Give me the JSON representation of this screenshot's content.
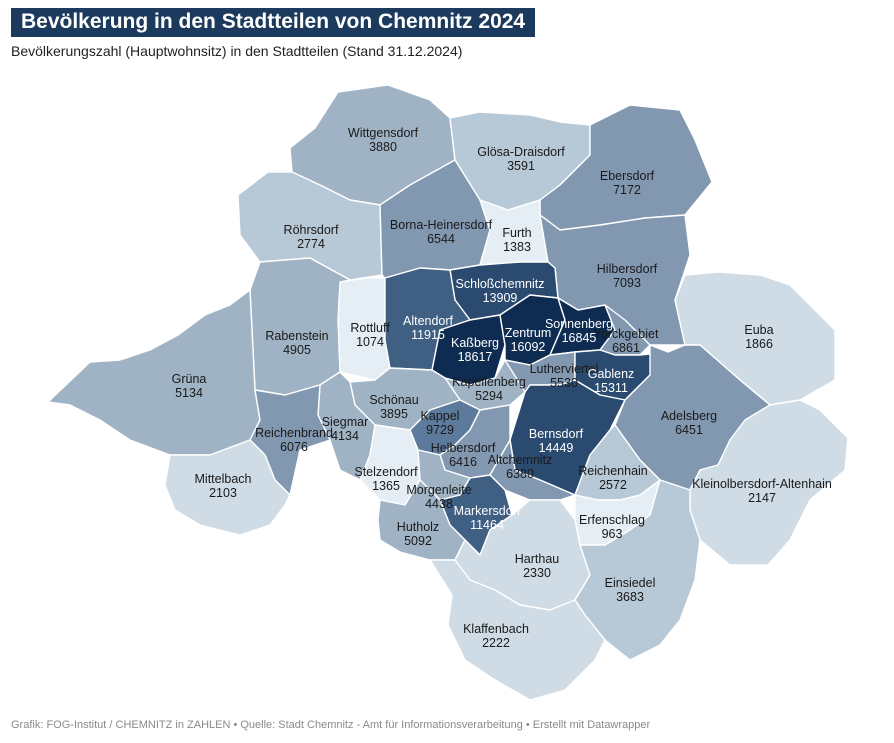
{
  "title": "Bevölkerung in den Stadtteilen von Chemnitz 2024",
  "subtitle": "Bevölkerungszahl (Hauptwohnsitz) in den Stadtteilen (Stand 31.12.2024)",
  "footer": "Grafik: FOG-Institut / CHEMNITZ in ZAHLEN • Quelle: Stadt Chemnitz - Amt für Informationsverarbeitung • Erstellt mit Datawrapper",
  "colors": {
    "scale": [
      "#e4eef4",
      "#cfdce6",
      "#b7c8d6",
      "#9fb3c5",
      "#8298b1",
      "#5c7a9b",
      "#3f5f83",
      "#2a4a70",
      "#0e2c52"
    ],
    "title_background": "#1c3a5e",
    "border": "#ffffff"
  },
  "districts": [
    {
      "name": "Wittgensdorf",
      "value": 3880
    },
    {
      "name": "Glösa-Draisdorf",
      "value": 3591
    },
    {
      "name": "Ebersdorf",
      "value": 7172
    },
    {
      "name": "Röhrsdorf",
      "value": 2774
    },
    {
      "name": "Borna-Heinersdorf",
      "value": 6544
    },
    {
      "name": "Furth",
      "value": 1383
    },
    {
      "name": "Hilbersdorf",
      "value": 7093
    },
    {
      "name": "Schloßchemnitz",
      "value": 13909
    },
    {
      "name": "Rottluff",
      "value": 1074
    },
    {
      "name": "Altendorf",
      "value": 11915
    },
    {
      "name": "Rabenstein",
      "value": 4905
    },
    {
      "name": "Kaßberg",
      "value": 18617
    },
    {
      "name": "Zentrum",
      "value": 16092
    },
    {
      "name": "Sonnenberg",
      "value": 16845
    },
    {
      "name": "Yorckgebiet",
      "value": 6861
    },
    {
      "name": "Euba",
      "value": 1866
    },
    {
      "name": "Grüna",
      "value": 5134
    },
    {
      "name": "Kapellenberg",
      "value": 5294
    },
    {
      "name": "Lutherviertel",
      "value": 5530
    },
    {
      "name": "Gablenz",
      "value": 15311
    },
    {
      "name": "Schönau",
      "value": 3895
    },
    {
      "name": "Kappel",
      "value": 9729
    },
    {
      "name": "Siegmar",
      "value": 4134
    },
    {
      "name": "Reichenbrand",
      "value": 6076
    },
    {
      "name": "Bernsdorf",
      "value": 14449
    },
    {
      "name": "Adelsberg",
      "value": 6451
    },
    {
      "name": "Helbersdorf",
      "value": 6416
    },
    {
      "name": "Altchemnitz",
      "value": 6380
    },
    {
      "name": "Reichenhain",
      "value": 2572
    },
    {
      "name": "Mittelbach",
      "value": 2103
    },
    {
      "name": "Stelzendorf",
      "value": 1365
    },
    {
      "name": "Kleinolbersdorf-Altenhain",
      "value": 2147
    },
    {
      "name": "Morgenleite",
      "value": 4438
    },
    {
      "name": "Markersdorf",
      "value": 11464
    },
    {
      "name": "Erfenschlag",
      "value": 963
    },
    {
      "name": "Hutholz",
      "value": 5092
    },
    {
      "name": "Harthau",
      "value": 2330
    },
    {
      "name": "Einsiedel",
      "value": 3683
    },
    {
      "name": "Klaffenbach",
      "value": 2222
    }
  ]
}
